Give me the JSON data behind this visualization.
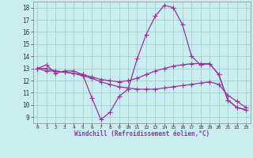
{
  "xlabel": "Windchill (Refroidissement éolien,°C)",
  "bg_color": "#c8eef0",
  "grid_color": "#a0c8c8",
  "line_color": "#993399",
  "xmin": 0,
  "xmax": 23,
  "ymin": 9,
  "ymax": 18,
  "hours": [
    0,
    1,
    2,
    3,
    4,
    5,
    6,
    7,
    8,
    9,
    10,
    11,
    12,
    13,
    14,
    15,
    16,
    17,
    18,
    19,
    20,
    21,
    22,
    23
  ],
  "series1": [
    13.0,
    13.3,
    12.6,
    12.8,
    12.8,
    12.5,
    10.6,
    8.8,
    9.4,
    10.7,
    11.3,
    13.8,
    15.8,
    17.3,
    18.2,
    18.0,
    16.6,
    14.0,
    13.3,
    13.4,
    12.5,
    10.4,
    9.8,
    9.6
  ],
  "series2": [
    13.0,
    12.8,
    12.8,
    12.7,
    12.6,
    12.5,
    12.3,
    12.1,
    12.0,
    11.9,
    12.0,
    12.2,
    12.5,
    12.8,
    13.0,
    13.2,
    13.3,
    13.4,
    13.4,
    13.4,
    12.5,
    10.4,
    9.8,
    9.6
  ],
  "series3": [
    13.0,
    13.0,
    12.8,
    12.7,
    12.6,
    12.4,
    12.2,
    11.9,
    11.7,
    11.5,
    11.4,
    11.3,
    11.3,
    11.3,
    11.4,
    11.5,
    11.6,
    11.7,
    11.8,
    11.9,
    11.7,
    10.8,
    10.3,
    9.8
  ]
}
